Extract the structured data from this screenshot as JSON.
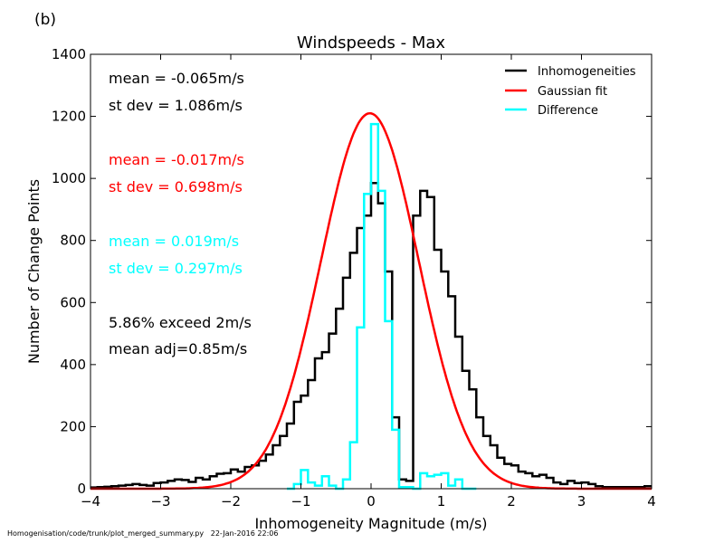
{
  "panel_label": "(b)",
  "footer": {
    "path": "Homogenisation/code/trunk/plot_merged_summary.py",
    "timestamp": "22-Jan-2016 22:06"
  },
  "chart_data": {
    "type": "line",
    "title": "Windspeeds - Max",
    "xlabel": "Inhomogeneity Magnitude (m/s)",
    "ylabel": "Number of Change Points",
    "xlim": [
      -4,
      4
    ],
    "ylim": [
      0,
      1400
    ],
    "x_ticks": [
      -4,
      -3,
      -2,
      -1,
      0,
      1,
      2,
      3,
      4
    ],
    "x_tick_labels": [
      "−4",
      "−3",
      "−2",
      "−1",
      "0",
      "1",
      "2",
      "3",
      "4"
    ],
    "y_ticks": [
      0,
      200,
      400,
      600,
      800,
      1000,
      1200,
      1400
    ],
    "y_tick_labels": [
      "0",
      "200",
      "400",
      "600",
      "800",
      "1000",
      "1200",
      "1400"
    ],
    "grid": false,
    "legend_position": "top-right",
    "bin_width": 0.1,
    "series": [
      {
        "name": "Inhomogeneities",
        "color": "#000000",
        "style": "step",
        "x_start": -4.0,
        "values": [
          4,
          5,
          6,
          8,
          10,
          12,
          15,
          12,
          10,
          18,
          20,
          25,
          30,
          28,
          22,
          35,
          30,
          40,
          48,
          50,
          62,
          55,
          70,
          75,
          90,
          110,
          140,
          170,
          210,
          280,
          300,
          350,
          420,
          440,
          500,
          580,
          680,
          760,
          840,
          880,
          985,
          920,
          700,
          230,
          30,
          25,
          880,
          960,
          940,
          770,
          700,
          620,
          490,
          380,
          320,
          230,
          170,
          140,
          100,
          80,
          75,
          55,
          50,
          40,
          45,
          35,
          20,
          15,
          25,
          18,
          20,
          15,
          8,
          5,
          5,
          5,
          5,
          5,
          5,
          8
        ]
      },
      {
        "name": "Gaussian fit",
        "color": "#ff0000",
        "style": "curve",
        "amplitude": 1210,
        "mean": -0.017,
        "sigma": 0.698
      },
      {
        "name": "Difference",
        "color": "#00ffff",
        "style": "step",
        "x_start": -1.2,
        "values": [
          0,
          15,
          60,
          20,
          10,
          40,
          10,
          0,
          30,
          150,
          520,
          950,
          1175,
          960,
          540,
          190,
          5,
          5,
          0,
          50,
          40,
          45,
          50,
          10,
          30,
          0,
          0
        ]
      }
    ],
    "annotations": [
      {
        "text": "mean = -0.065m/s",
        "color": "#000000"
      },
      {
        "text": "st dev =  1.086m/s",
        "color": "#000000"
      },
      {
        "text": "mean = -0.017m/s",
        "color": "#ff0000"
      },
      {
        "text": "st dev =  0.698m/s",
        "color": "#ff0000"
      },
      {
        "text": "mean =  0.019m/s",
        "color": "#00ffff"
      },
      {
        "text": "st dev =  0.297m/s",
        "color": "#00ffff"
      },
      {
        "text": "5.86% exceed 2m/s",
        "color": "#000000"
      },
      {
        "text": "mean adj=0.85m/s",
        "color": "#000000"
      }
    ]
  }
}
